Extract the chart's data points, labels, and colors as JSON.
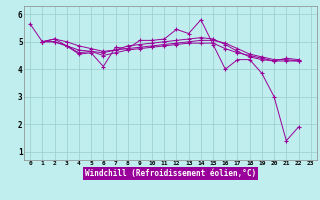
{
  "xlabel": "Windchill (Refroidissement éolien,°C)",
  "bg_color": "#c0eeee",
  "line_color": "#990099",
  "grid_color": "#99cccc",
  "xlim": [
    -0.5,
    23.5
  ],
  "ylim": [
    0.7,
    6.3
  ],
  "yticks": [
    1,
    2,
    3,
    4,
    5,
    6
  ],
  "xticks": [
    0,
    1,
    2,
    3,
    4,
    5,
    6,
    7,
    8,
    9,
    10,
    11,
    12,
    13,
    14,
    15,
    16,
    17,
    18,
    19,
    20,
    21,
    22,
    23
  ],
  "series": [
    {
      "x": [
        0,
        1,
        2,
        3,
        4,
        5,
        6,
        7,
        8,
        9,
        10,
        11,
        12,
        13,
        14,
        15,
        16,
        17,
        18,
        19,
        20,
        21,
        22
      ],
      "y": [
        5.65,
        5.0,
        5.0,
        4.85,
        4.55,
        4.6,
        4.1,
        4.8,
        4.75,
        5.05,
        5.05,
        5.1,
        5.45,
        5.3,
        5.8,
        4.9,
        4.0,
        4.35,
        4.35,
        3.85,
        3.0,
        1.4,
        1.9
      ]
    },
    {
      "x": [
        1,
        2,
        3,
        4,
        5,
        6,
        7,
        8,
        9,
        10,
        11,
        12,
        13,
        14,
        15,
        16,
        17,
        18,
        19,
        20,
        21,
        22
      ],
      "y": [
        5.0,
        5.1,
        4.85,
        4.6,
        4.65,
        4.5,
        4.6,
        4.7,
        4.75,
        4.8,
        4.85,
        4.9,
        4.95,
        4.95,
        4.95,
        4.75,
        4.6,
        4.5,
        4.4,
        4.3,
        4.4,
        4.35
      ]
    },
    {
      "x": [
        1,
        2,
        3,
        4,
        5,
        6,
        7,
        8,
        9,
        10,
        11,
        12,
        13,
        14,
        15,
        16,
        17,
        18,
        19,
        20,
        21,
        22
      ],
      "y": [
        5.0,
        5.1,
        5.0,
        4.85,
        4.75,
        4.65,
        4.7,
        4.75,
        4.8,
        4.85,
        4.9,
        4.95,
        5.0,
        5.05,
        5.05,
        4.95,
        4.75,
        4.55,
        4.45,
        4.35,
        4.35,
        4.3
      ]
    },
    {
      "x": [
        1,
        2,
        3,
        4,
        5,
        6,
        7,
        8,
        9,
        10,
        11,
        12,
        13,
        14,
        15,
        16,
        17,
        18,
        19,
        20,
        21,
        22
      ],
      "y": [
        5.0,
        5.0,
        4.85,
        4.7,
        4.65,
        4.6,
        4.7,
        4.85,
        4.9,
        4.95,
        5.0,
        5.05,
        5.1,
        5.15,
        5.1,
        4.9,
        4.65,
        4.45,
        4.35,
        4.3,
        4.3,
        4.3
      ]
    }
  ]
}
